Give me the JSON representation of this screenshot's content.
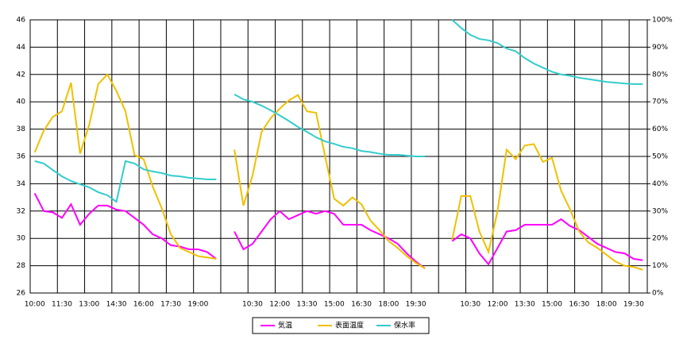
{
  "chart_data": {
    "type": "line",
    "categories": [
      "10:00",
      null,
      null,
      "11:30",
      null,
      null,
      "13:00",
      null,
      null,
      "14:30",
      null,
      null,
      "16:00",
      null,
      null,
      "17:30",
      null,
      null,
      "19:00",
      null,
      null,
      null,
      null,
      null,
      "10:30",
      null,
      null,
      "12:00",
      null,
      null,
      "13:30",
      null,
      null,
      "15:00",
      null,
      null,
      "16:30",
      null,
      null,
      "18:00",
      null,
      null,
      "19:30",
      null,
      null,
      null,
      null,
      null,
      "10:30",
      null,
      null,
      "12:00",
      null,
      null,
      "13:30",
      null,
      null,
      "15:00",
      null,
      null,
      "16:30",
      null,
      null,
      "18:00",
      null,
      null,
      "19:30",
      null
    ],
    "ylim": [
      26,
      46
    ],
    "yticks": [
      26,
      28,
      30,
      32,
      34,
      36,
      38,
      40,
      42,
      44,
      46
    ],
    "y2lim": [
      0,
      100
    ],
    "y2ticks": [
      {
        "value": 0,
        "label": "0%"
      },
      {
        "value": 10,
        "label": "10%"
      },
      {
        "value": 20,
        "label": "20%"
      },
      {
        "value": 30,
        "label": "30%"
      },
      {
        "value": 40,
        "label": "40%"
      },
      {
        "value": 50,
        "label": "50%"
      },
      {
        "value": 60,
        "label": "60%"
      },
      {
        "value": 70,
        "label": "70%"
      },
      {
        "value": 80,
        "label": "80%"
      },
      {
        "value": 90,
        "label": "90%"
      },
      {
        "value": 100,
        "label": "100%"
      }
    ],
    "grid": true,
    "legend": "bottom",
    "series": [
      {
        "name": "気温",
        "color": "#ff00ff",
        "values": [
          33.3,
          32.0,
          31.9,
          31.5,
          32.5,
          31.0,
          31.8,
          32.4,
          32.4,
          32.1,
          32.0,
          31.5,
          31.0,
          30.3,
          30.0,
          29.5,
          29.4,
          29.2,
          29.2,
          29.0,
          28.5,
          null,
          30.5,
          29.2,
          29.6,
          30.5,
          31.4,
          32.0,
          31.4,
          31.7,
          32.0,
          31.8,
          32.0,
          31.8,
          31.0,
          31.0,
          31.0,
          30.6,
          30.3,
          30.0,
          29.6,
          28.9,
          28.3,
          27.8,
          null,
          null,
          29.8,
          30.3,
          30.0,
          28.9,
          28.1,
          29.3,
          30.5,
          30.6,
          31.0,
          31.0,
          31.0,
          31.0,
          31.4,
          30.9,
          30.6,
          30.1,
          29.6,
          29.3,
          29.0,
          28.9,
          28.5,
          28.4
        ]
      },
      {
        "name": "表面温度",
        "color": "#f0c000",
        "values": [
          36.3,
          37.9,
          38.9,
          39.3,
          41.4,
          36.2,
          38.3,
          41.3,
          42.0,
          40.8,
          39.3,
          36.1,
          35.8,
          33.8,
          32.2,
          30.3,
          29.3,
          29.0,
          28.7,
          28.6,
          28.5,
          null,
          36.5,
          32.4,
          34.6,
          37.8,
          38.8,
          39.5,
          40.1,
          40.5,
          39.3,
          39.2,
          36.0,
          32.9,
          32.4,
          33.0,
          32.5,
          31.3,
          30.6,
          29.8,
          29.3,
          28.7,
          28.2,
          27.8,
          null,
          null,
          29.9,
          33.1,
          33.1,
          30.5,
          29.0,
          32.0,
          36.5,
          35.8,
          36.8,
          36.9,
          35.6,
          35.9,
          33.5,
          32.1,
          30.5,
          29.7,
          29.3,
          28.8,
          28.3,
          28.0,
          27.9,
          27.7
        ]
      },
      {
        "name": "保水率",
        "color": "#33cccc",
        "axis": "y2",
        "values": [
          48.3,
          47.4,
          45.0,
          42.7,
          41.0,
          39.8,
          38.7,
          36.9,
          35.8,
          33.4,
          48.3,
          47.4,
          45.3,
          44.5,
          43.9,
          43.0,
          42.7,
          42.2,
          41.9,
          41.6,
          41.6,
          null,
          72.7,
          70.9,
          70.0,
          68.6,
          66.9,
          65.0,
          63.0,
          60.8,
          59.0,
          57.0,
          55.5,
          54.6,
          53.5,
          53.0,
          52.0,
          51.6,
          51.0,
          50.6,
          50.6,
          50.3,
          50.0,
          50.0,
          null,
          null,
          100,
          97,
          94.5,
          93,
          92.5,
          91.5,
          89.5,
          88.5,
          86,
          84,
          82.5,
          81,
          80,
          79.5,
          78.8,
          78.3,
          77.8,
          77.3,
          77.0,
          76.7,
          76.5,
          76.5
        ]
      }
    ]
  }
}
